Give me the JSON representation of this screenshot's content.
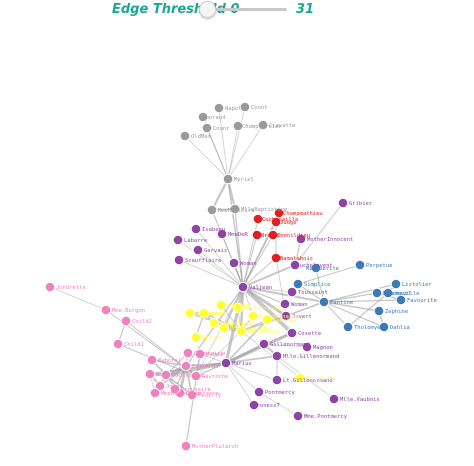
{
  "controls": {
    "threshold_label": "Edge Threshold",
    "min_value": "0",
    "max_value": "31",
    "current_value": 0
  },
  "groups": {
    "gray": "#9a9a9a",
    "red": "#e02020",
    "purple": "#8e44a4",
    "blue": "#3c7ab8",
    "yellow": "#ffff33",
    "pink": "#ef82bd"
  },
  "nodes": [
    {
      "id": "Napoleon",
      "label": "Napol",
      "group": "gray"
    },
    {
      "id": "CountessDeLo",
      "label": "Count",
      "group": "gray"
    },
    {
      "id": "Geborand",
      "label": "Geborand",
      "group": "gray"
    },
    {
      "id": "Cravatte",
      "label": "Cravatte",
      "group": "gray"
    },
    {
      "id": "Champtercier",
      "label": "Champtercier",
      "group": "gray"
    },
    {
      "id": "Count",
      "label": "Count",
      "group": "gray"
    },
    {
      "id": "OldMan",
      "label": "OldMan",
      "group": "gray"
    },
    {
      "id": "Myriel",
      "label": "Myriel",
      "group": "gray"
    },
    {
      "id": "MmeMagloire",
      "label": "MmeMagloire",
      "group": "gray"
    },
    {
      "id": "MlleBaptistine",
      "label": "MlleBaptistine",
      "group": "gray"
    },
    {
      "id": "Gribier",
      "label": "Gribier",
      "group": "purple"
    },
    {
      "id": "Champmathieu",
      "label": "Champmathieu",
      "group": "red"
    },
    {
      "id": "Cochepaille",
      "label": "Cochepaille",
      "group": "red"
    },
    {
      "id": "Judge",
      "label": "Judge",
      "group": "red"
    },
    {
      "id": "Brevet",
      "label": "Brevet",
      "group": "red"
    },
    {
      "id": "Chenildieu",
      "label": "Chenildieu",
      "group": "red"
    },
    {
      "id": "Bamatabois",
      "label": "Bamatabois",
      "group": "red"
    },
    {
      "id": "Isabeau",
      "label": "Isabeau",
      "group": "purple"
    },
    {
      "id": "MmeDeR",
      "label": "MmeDeR",
      "group": "purple"
    },
    {
      "id": "Labarre",
      "label": "Labarre",
      "group": "purple"
    },
    {
      "id": "MotherInnocent",
      "label": "MotherInnocent",
      "group": "purple"
    },
    {
      "id": "Gervais",
      "label": "Gervais",
      "group": "purple"
    },
    {
      "id": "Scaufflaire",
      "label": "Scaufflaire",
      "group": "purple"
    },
    {
      "id": "Woman",
      "label": "Woman",
      "group": "purple"
    },
    {
      "id": "Fauchelevent",
      "label": "Fauchelevent",
      "group": "purple"
    },
    {
      "id": "Perpetue",
      "label": "Perpetue",
      "group": "blue"
    },
    {
      "id": "Marguerite",
      "label": "Marguerite",
      "group": "blue"
    },
    {
      "id": "Simplice",
      "label": "Simplice",
      "group": "blue"
    },
    {
      "id": "Listolier",
      "label": "Listolier",
      "group": "blue"
    },
    {
      "id": "Fameuil",
      "label": "Fameuil",
      "group": "blue"
    },
    {
      "id": "Favourite",
      "label": "Favourite",
      "group": "blue"
    },
    {
      "id": "Blacheville",
      "label": "Blacheville",
      "group": "blue"
    },
    {
      "id": "Dahlia",
      "label": "Dahlia",
      "group": "blue"
    },
    {
      "id": "Tholomyes",
      "label": "Tholomyes",
      "group": "blue"
    },
    {
      "id": "Zephine",
      "label": "Zephine",
      "group": "blue"
    },
    {
      "id": "Fantine",
      "label": "Fantine",
      "group": "blue"
    },
    {
      "id": "Valjean",
      "label": "Valjean",
      "group": "purple"
    },
    {
      "id": "Toussaint",
      "label": "Toussaint",
      "group": "purple"
    },
    {
      "id": "Woman2",
      "label": "Woman",
      "group": "purple"
    },
    {
      "id": "Javert",
      "label": "Javert",
      "group": "purple"
    },
    {
      "id": "Cosette",
      "label": "Cosette",
      "group": "purple"
    },
    {
      "id": "Gillenormand",
      "label": "Gillenormand",
      "group": "purple"
    },
    {
      "id": "Magnon",
      "label": "Magnon",
      "group": "purple"
    },
    {
      "id": "MlleGillenormand",
      "label": "Mlle.Gillenormand",
      "group": "purple"
    },
    {
      "id": "LtGillenormand",
      "label": "Lt.Gillenormand",
      "group": "purple"
    },
    {
      "id": "Marius",
      "label": "Marius",
      "group": "purple"
    },
    {
      "id": "Pontmercy",
      "label": "Pontmercy",
      "group": "purple"
    },
    {
      "id": "BaronessT",
      "label": "BaronessT",
      "group": "purple"
    },
    {
      "id": "MlleVaubois",
      "label": "Mlle.Vaubois",
      "group": "purple"
    },
    {
      "id": "MmePontmercy",
      "label": "Mme.Pontmercy",
      "group": "purple"
    },
    {
      "id": "Thenardier",
      "label": "Thenardier",
      "group": "yellow"
    },
    {
      "id": "MmeThenardier",
      "label": "MmeThenardier",
      "group": "yellow"
    },
    {
      "id": "Eponine",
      "label": "Eponine",
      "group": "yellow"
    },
    {
      "id": "Anzelma",
      "label": "Anzelma",
      "group": "yellow"
    },
    {
      "id": "Boulatruelle",
      "label": "Boulatruelle",
      "group": "yellow"
    },
    {
      "id": "Pontmercy2",
      "label": "Pontmercy",
      "group": "yellow"
    },
    {
      "id": "Gueulemer",
      "label": "Gueulemer",
      "group": "yellow"
    },
    {
      "id": "Babet",
      "label": "Babet",
      "group": "yellow"
    },
    {
      "id": "Claquesous",
      "label": "Claquesous",
      "group": "yellow"
    },
    {
      "id": "Brujon",
      "label": "Brujon",
      "group": "yellow"
    },
    {
      "id": "Montparnasse",
      "label": "Montparnasse",
      "group": "yellow"
    },
    {
      "id": "Jondrette",
      "label": "Jondrette",
      "group": "pink"
    },
    {
      "id": "MmeBurgon",
      "label": "Mme.Burgon",
      "group": "pink"
    },
    {
      "id": "Child2",
      "label": "Child2",
      "group": "pink"
    },
    {
      "id": "Child1",
      "label": "Child1",
      "group": "pink"
    },
    {
      "id": "Gavroche",
      "label": "Gavroche",
      "group": "pink"
    },
    {
      "id": "Enjolras",
      "label": "Enjolras",
      "group": "pink"
    },
    {
      "id": "Combeferre",
      "label": "Combeferre",
      "group": "pink"
    },
    {
      "id": "Prouvaire",
      "label": "Prouvaire",
      "group": "pink"
    },
    {
      "id": "Feuilly",
      "label": "Feuilly",
      "group": "pink"
    },
    {
      "id": "Courfeyrac",
      "label": "Courfeyrac",
      "group": "pink"
    },
    {
      "id": "Bahorel",
      "label": "Bahorel",
      "group": "pink"
    },
    {
      "id": "Bossuet",
      "label": "Bossuet",
      "group": "pink"
    },
    {
      "id": "Joly",
      "label": "Joly",
      "group": "pink"
    },
    {
      "id": "Grantaire",
      "label": "Grantaire",
      "group": "pink"
    },
    {
      "id": "MmeHucheloup",
      "label": "MmeHucheloup",
      "group": "pink"
    },
    {
      "id": "Mabeuf",
      "label": "Mabeuf",
      "group": "pink"
    },
    {
      "id": "MotherPlutarch",
      "label": "MotherPlutarch",
      "group": "pink"
    }
  ],
  "links": [
    [
      "Napoleon",
      "Myriel",
      1
    ],
    [
      "CountessDeLo",
      "Myriel",
      1
    ],
    [
      "Geborand",
      "Myriel",
      1
    ],
    [
      "Cravatte",
      "Myriel",
      1
    ],
    [
      "Champtercier",
      "Myriel",
      1
    ],
    [
      "Count",
      "Myriel",
      2
    ],
    [
      "OldMan",
      "Myriel",
      1
    ],
    [
      "Myriel",
      "MmeMagloire",
      10
    ],
    [
      "Myriel",
      "MlleBaptistine",
      8
    ],
    [
      "MlleBaptistine",
      "MmeMagloire",
      6
    ],
    [
      "Myriel",
      "Valjean",
      5
    ],
    [
      "MmeMagloire",
      "Valjean",
      3
    ],
    [
      "MlleBaptistine",
      "Valjean",
      3
    ],
    [
      "Champmathieu",
      "Judge",
      3
    ],
    [
      "Cochepaille",
      "Judge",
      2
    ],
    [
      "Brevet",
      "Chenildieu",
      2
    ],
    [
      "Bamatabois",
      "Judge",
      2
    ],
    [
      "Judge",
      "Valjean",
      3
    ],
    [
      "Bamatabois",
      "Valjean",
      2
    ],
    [
      "Champmathieu",
      "Valjean",
      3
    ],
    [
      "Chenildieu",
      "Valjean",
      2
    ],
    [
      "Brevet",
      "Valjean",
      2
    ],
    [
      "Cochepaille",
      "Valjean",
      2
    ],
    [
      "Isabeau",
      "Valjean",
      1
    ],
    [
      "MmeDeR",
      "Valjean",
      1
    ],
    [
      "Labarre",
      "Valjean",
      1
    ],
    [
      "Gervais",
      "Valjean",
      1
    ],
    [
      "Scaufflaire",
      "Valjean",
      1
    ],
    [
      "Woman",
      "Valjean",
      3
    ],
    [
      "MotherInnocent",
      "Fauchelevent",
      3
    ],
    [
      "Fauchelevent",
      "Valjean",
      8
    ],
    [
      "Gribier",
      "Fauchelevent",
      2
    ],
    [
      "Perpetue",
      "Simplice",
      2
    ],
    [
      "Simplice",
      "Fantine",
      3
    ],
    [
      "Marguerite",
      "Fantine",
      2
    ],
    [
      "Fantine",
      "Valjean",
      9
    ],
    [
      "Listolier",
      "Fameuil",
      4
    ],
    [
      "Fameuil",
      "Blacheville",
      4
    ],
    [
      "Favourite",
      "Blacheville",
      4
    ],
    [
      "Dahlia",
      "Zephine",
      4
    ],
    [
      "Tholomyes",
      "Fantine",
      3
    ],
    [
      "Zephine",
      "Fantine",
      4
    ],
    [
      "Blacheville",
      "Fantine",
      3
    ],
    [
      "Listolier",
      "Fantine",
      3
    ],
    [
      "Favourite",
      "Fantine",
      3
    ],
    [
      "Dahlia",
      "Fantine",
      3
    ],
    [
      "Fameuil",
      "Tholomyes",
      3
    ],
    [
      "Toussaint",
      "Valjean",
      1
    ],
    [
      "Woman2",
      "Valjean",
      3
    ],
    [
      "Javert",
      "Valjean",
      17
    ],
    [
      "Cosette",
      "Valjean",
      31
    ],
    [
      "Marius",
      "Valjean",
      19
    ],
    [
      "Javert",
      "Fantine",
      5
    ],
    [
      "Javert",
      "Thenardier",
      5
    ],
    [
      "Javert",
      "Bamatabois",
      1
    ],
    [
      "Cosette",
      "Marius",
      21
    ],
    [
      "Cosette",
      "Gillenormand",
      2
    ],
    [
      "Gillenormand",
      "Marius",
      12
    ],
    [
      "MlleGillenormand",
      "Gillenormand",
      9
    ],
    [
      "MlleGillenormand",
      "Marius",
      6
    ],
    [
      "Magnon",
      "Gillenormand",
      1
    ],
    [
      "LtGillenormand",
      "MlleGillenormand",
      2
    ],
    [
      "LtGillenormand",
      "Marius",
      1
    ],
    [
      "Pontmercy",
      "Marius",
      1
    ],
    [
      "BaronessT",
      "Marius",
      1
    ],
    [
      "MlleVaubois",
      "MlleGillenormand",
      1
    ],
    [
      "MmePontmercy",
      "Pontmercy",
      1
    ],
    [
      "Thenardier",
      "MmeThenardier",
      13
    ],
    [
      "Thenardier",
      "Valjean",
      12
    ],
    [
      "MmeThenardier",
      "Valjean",
      7
    ],
    [
      "Eponine",
      "Marius",
      5
    ],
    [
      "Eponine",
      "Thenardier",
      3
    ],
    [
      "Anzelma",
      "Thenardier",
      2
    ],
    [
      "Boulatruelle",
      "Thenardier",
      1
    ],
    [
      "Gueulemer",
      "Thenardier",
      5
    ],
    [
      "Babet",
      "Thenardier",
      6
    ],
    [
      "Claquesous",
      "Thenardier",
      4
    ],
    [
      "Brujon",
      "Babet",
      3
    ],
    [
      "Montparnasse",
      "Thenardier",
      2
    ],
    [
      "Montparnasse",
      "Valjean",
      1
    ],
    [
      "Gueulemer",
      "Babet",
      6
    ],
    [
      "Claquesous",
      "Babet",
      4
    ],
    [
      "Pontmercy2",
      "Thenardier",
      1
    ],
    [
      "Gavroche",
      "Thenardier",
      1
    ],
    [
      "Gavroche",
      "Valjean",
      1
    ],
    [
      "Gavroche",
      "Marius",
      4
    ],
    [
      "Enjolras",
      "Marius",
      7
    ],
    [
      "Enjolras",
      "Valjean",
      4
    ],
    [
      "Enjolras",
      "Gavroche",
      7
    ],
    [
      "Combeferre",
      "Enjolras",
      15
    ],
    [
      "Courfeyrac",
      "Enjolras",
      17
    ],
    [
      "Courfeyrac",
      "Marius",
      21
    ],
    [
      "Bahorel",
      "Courfeyrac",
      6
    ],
    [
      "Bossuet",
      "Courfeyrac",
      12
    ],
    [
      "Joly",
      "Bossuet",
      7
    ],
    [
      "Joly",
      "Courfeyrac",
      5
    ],
    [
      "Grantaire",
      "Enjolras",
      3
    ],
    [
      "Feuilly",
      "Enjolras",
      6
    ],
    [
      "Prouvaire",
      "Enjolras",
      4
    ],
    [
      "MmeHucheloup",
      "Bossuet",
      1
    ],
    [
      "Mabeuf",
      "Marius",
      1
    ],
    [
      "Mabeuf",
      "Gavroche",
      1
    ],
    [
      "MotherPlutarch",
      "Mabeuf",
      3
    ],
    [
      "Child1",
      "Gavroche",
      2
    ],
    [
      "Child2",
      "Gavroche",
      2
    ],
    [
      "MmeBurgon",
      "Gavroche",
      2
    ],
    [
      "Jondrette",
      "MmeBurgon",
      1
    ],
    [
      "Child1",
      "Child2",
      3
    ],
    [
      "Combeferre",
      "Courfeyrac",
      13
    ],
    [
      "Feuilly",
      "Courfeyrac",
      6
    ],
    [
      "Bahorel",
      "Enjolras",
      4
    ],
    [
      "Bossuet",
      "Marius",
      5
    ],
    [
      "Joly",
      "Enjolras",
      5
    ],
    [
      "Grantaire",
      "Courfeyrac",
      2
    ]
  ]
}
